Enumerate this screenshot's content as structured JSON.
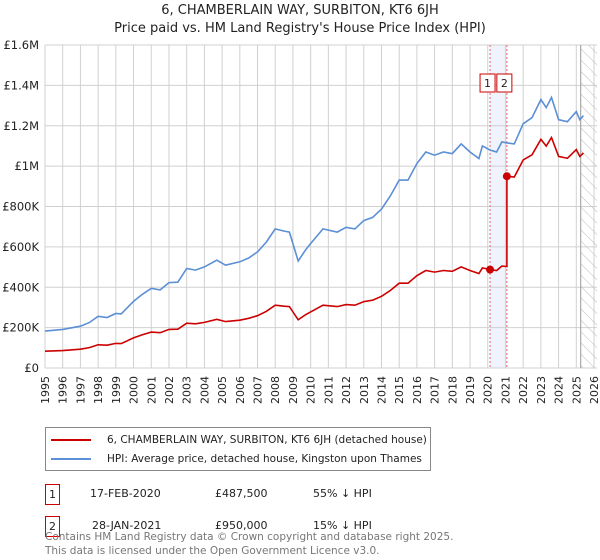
{
  "chart_data": {
    "type": "line",
    "title": "6, CHAMBERLAIN WAY, SURBITON, KT6 6JH",
    "subtitle": "Price paid vs. HM Land Registry's House Price Index (HPI)",
    "xlim": [
      1995,
      2026
    ],
    "ylim": [
      0,
      1600000
    ],
    "x_ticks": [
      "1995",
      "1996",
      "1997",
      "1998",
      "1999",
      "2000",
      "2001",
      "2002",
      "2003",
      "2004",
      "2005",
      "2006",
      "2007",
      "2008",
      "2009",
      "2010",
      "2011",
      "2012",
      "2013",
      "2014",
      "2015",
      "2016",
      "2017",
      "2018",
      "2019",
      "2020",
      "2021",
      "2022",
      "2023",
      "2024",
      "2025",
      "2026"
    ],
    "y_ticks": [
      {
        "value": 0,
        "label": "£0"
      },
      {
        "value": 200000,
        "label": "£200K"
      },
      {
        "value": 400000,
        "label": "£400K"
      },
      {
        "value": 600000,
        "label": "£600K"
      },
      {
        "value": 800000,
        "label": "£800K"
      },
      {
        "value": 1000000,
        "label": "£1M"
      },
      {
        "value": 1200000,
        "label": "£1.2M"
      },
      {
        "value": 1400000,
        "label": "£1.4M"
      },
      {
        "value": 1600000,
        "label": "£1.6M"
      }
    ],
    "grid": true,
    "forecast_hatch_from": 2025.25,
    "series": [
      {
        "name": "6, CHAMBERLAIN WAY, SURBITON, KT6 6JH (detached house)",
        "color": "#cc0000",
        "x": [
          1995,
          1996,
          1997,
          1997.5,
          1998,
          1998.5,
          1999,
          1999.3,
          2000,
          2000.5,
          2001,
          2001.5,
          2002,
          2002.5,
          2003,
          2003.5,
          2004,
          2004.7,
          2005.2,
          2006,
          2006.5,
          2007,
          2007.5,
          2008,
          2008.5,
          2008.8,
          2009.3,
          2009.7,
          2010,
          2010.7,
          2011.5,
          2012,
          2012.5,
          2013,
          2013.5,
          2014,
          2014.5,
          2015,
          2015.5,
          2016,
          2016.5,
          2017,
          2017.5,
          2018,
          2018.5,
          2019,
          2019.5,
          2019.7,
          2020.13,
          2020.5,
          2020.8,
          2021.08,
          2021.08,
          2021.5,
          2022,
          2022.5,
          2023,
          2023.3,
          2023.6,
          2024,
          2024.5,
          2025,
          2025.2,
          2025.4
        ],
        "values": [
          83000,
          86000,
          93000,
          101000,
          115000,
          113000,
          122000,
          121000,
          149000,
          165000,
          178000,
          175000,
          191000,
          192000,
          222000,
          219000,
          226000,
          241000,
          230000,
          237000,
          246000,
          259000,
          281000,
          311000,
          306000,
          304000,
          239000,
          263000,
          278000,
          311000,
          304000,
          314000,
          311000,
          329000,
          336000,
          355000,
          384000,
          420000,
          420000,
          457000,
          483000,
          475000,
          483000,
          479000,
          501000,
          483000,
          468000,
          496000,
          487500,
          483000,
          505000,
          503000,
          950000,
          946000,
          1031000,
          1056000,
          1133000,
          1099000,
          1142000,
          1048000,
          1039000,
          1082000,
          1048000,
          1065000
        ]
      },
      {
        "name": "HPI: Average price, detached house, Kingston upon Thames",
        "color": "#5b8fd6",
        "x": [
          1995,
          1996,
          1997,
          1997.5,
          1998,
          1998.5,
          1999,
          1999.3,
          2000,
          2000.5,
          2001,
          2001.5,
          2002,
          2002.5,
          2003,
          2003.5,
          2004,
          2004.7,
          2005.2,
          2006,
          2006.5,
          2007,
          2007.5,
          2008,
          2008.5,
          2008.8,
          2009.3,
          2009.7,
          2010,
          2010.7,
          2011.5,
          2012,
          2012.5,
          2013,
          2013.5,
          2014,
          2014.5,
          2015,
          2015.5,
          2016,
          2016.5,
          2017,
          2017.5,
          2018,
          2018.5,
          2019,
          2019.5,
          2019.7,
          2020.13,
          2020.5,
          2020.8,
          2021.08,
          2021.5,
          2022,
          2022.5,
          2023,
          2023.3,
          2023.6,
          2024,
          2024.5,
          2025,
          2025.2,
          2025.4
        ],
        "values": [
          183000,
          191000,
          207000,
          225000,
          256000,
          250000,
          270000,
          268000,
          330000,
          365000,
          395000,
          387000,
          423000,
          425000,
          493000,
          485000,
          501000,
          534000,
          509000,
          526000,
          545000,
          575000,
          624000,
          689000,
          678000,
          673000,
          530000,
          583000,
          616000,
          689000,
          673000,
          697000,
          689000,
          730000,
          746000,
          787000,
          852000,
          931000,
          931000,
          1013000,
          1070000,
          1054000,
          1070000,
          1062000,
          1110000,
          1070000,
          1038000,
          1100000,
          1080000,
          1070000,
          1120000,
          1115000,
          1110000,
          1210000,
          1240000,
          1330000,
          1290000,
          1340000,
          1230000,
          1220000,
          1270000,
          1230000,
          1250000
        ]
      }
    ],
    "sales": [
      {
        "label": "1",
        "x": 2020.13,
        "value": 487500,
        "date": "17-FEB-2020",
        "price": "£487,500",
        "hpi": "55% ↓ HPI"
      },
      {
        "label": "2",
        "x": 2021.08,
        "value": 950000,
        "date": "28-JAN-2021",
        "price": "£950,000",
        "hpi": "15% ↓ HPI"
      }
    ]
  },
  "legend": {
    "property": "6, CHAMBERLAIN WAY, SURBITON, KT6 6JH (detached house)",
    "hpi": "HPI: Average price, detached house, Kingston upon Thames"
  },
  "footer": {
    "line1": "Contains HM Land Registry data © Crown copyright and database right 2025.",
    "line2": "This data is licensed under the Open Government Licence v3.0."
  }
}
